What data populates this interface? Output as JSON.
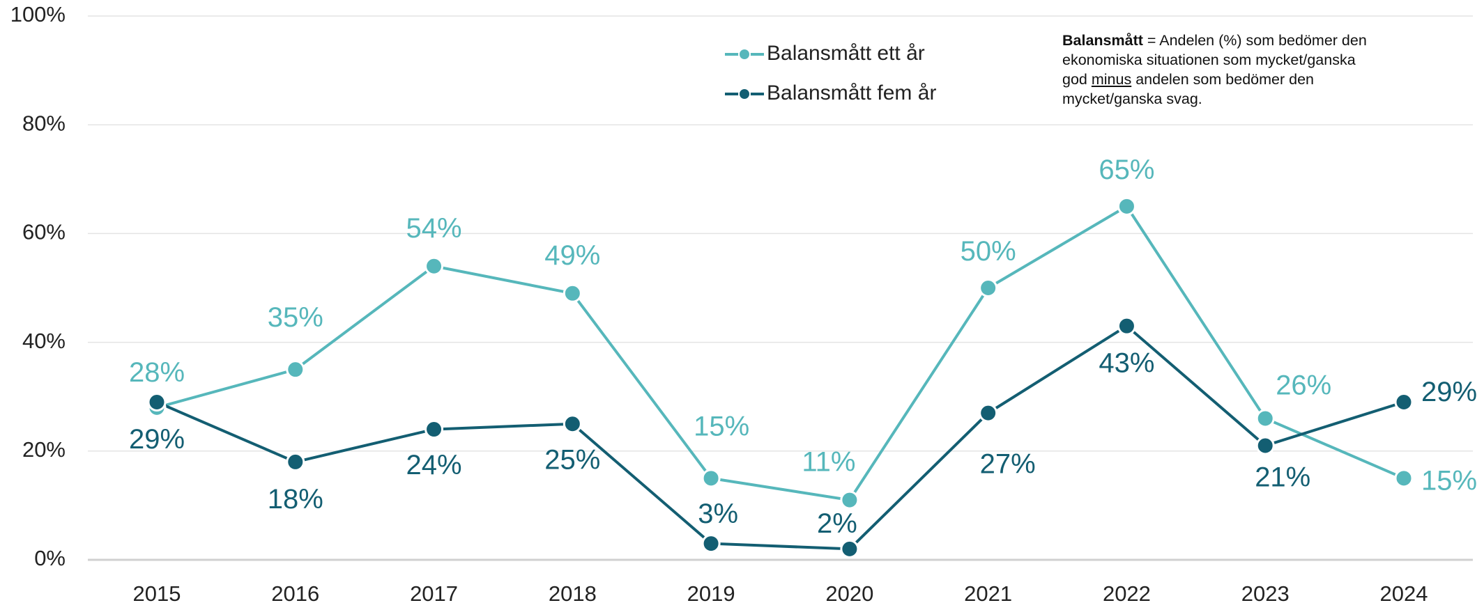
{
  "chart_data": {
    "type": "line",
    "categories": [
      "2015",
      "2016",
      "2017",
      "2018",
      "2019",
      "2020",
      "2021",
      "2022",
      "2023",
      "2024"
    ],
    "series": [
      {
        "name": "Balansmått ett år",
        "color": "#56b7bb",
        "values": [
          28,
          35,
          54,
          49,
          15,
          11,
          50,
          65,
          26,
          15
        ],
        "value_labels": [
          "28%",
          "35%",
          "54%",
          "49%",
          "15%",
          "11%",
          "50%",
          "65%",
          "26%",
          "15%"
        ]
      },
      {
        "name": "Balansmått fem år",
        "color": "#135e72",
        "values": [
          29,
          18,
          24,
          25,
          3,
          2,
          27,
          43,
          21,
          29
        ],
        "value_labels": [
          "29%",
          "18%",
          "24%",
          "25%",
          "3%",
          "2%",
          "27%",
          "43%",
          "21%",
          "29%"
        ]
      }
    ],
    "ylim": [
      0,
      100
    ],
    "yticks": [
      {
        "value": 0,
        "label": "0%"
      },
      {
        "value": 20,
        "label": "20%"
      },
      {
        "value": 40,
        "label": "40%"
      },
      {
        "value": 60,
        "label": "60%"
      },
      {
        "value": 80,
        "label": "80%"
      },
      {
        "value": 100,
        "label": "100%"
      }
    ],
    "grid": true,
    "annotation": {
      "bold": "Balansmått",
      "text1": " = Andelen (%) som bedömer den ekonomiska situationen som mycket/ganska god ",
      "underline": "minus",
      "text2": " andelen som bedömer den mycket/ganska svag."
    }
  }
}
